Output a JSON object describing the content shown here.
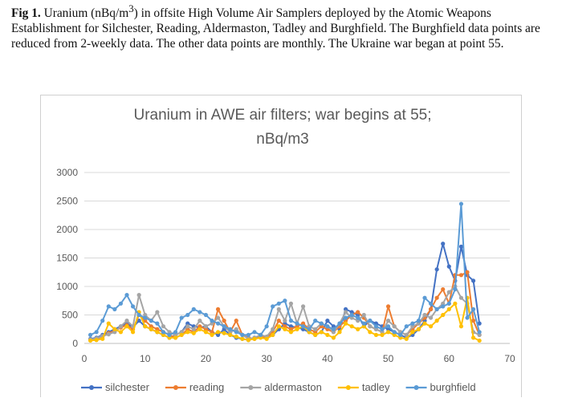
{
  "caption": {
    "fig_label": "Fig 1.",
    "text_before_sup": " Uranium (nBq/m",
    "sup": "3",
    "text_after_sup": ") in offsite High Volume Air Samplers deployed by the Atomic Weapons Establishment for Silchester, Reading, Aldermaston, Tadley and Burghfield. The Burghfield data points are reduced from 2-weekly data. The other data points are monthly. The Ukraine war began at point 55."
  },
  "chart_data": {
    "type": "line",
    "title_line1": "Uranium in AWE air filters; war begins at 55;",
    "title_line2": "nBq/m3",
    "xlabel": "",
    "ylabel": "",
    "xlim": [
      0,
      70
    ],
    "ylim": [
      0,
      3000
    ],
    "x_ticks": [
      0,
      10,
      20,
      30,
      40,
      50,
      60,
      70
    ],
    "y_ticks": [
      0,
      500,
      1000,
      1500,
      2000,
      2500,
      3000
    ],
    "grid": "horizontal",
    "legend_position": "bottom",
    "series": [
      {
        "name": "silchester",
        "color": "#4472c4",
        "x": [
          1,
          2,
          3,
          4,
          5,
          6,
          7,
          8,
          9,
          10,
          11,
          12,
          13,
          14,
          15,
          16,
          17,
          18,
          19,
          20,
          21,
          22,
          23,
          24,
          25,
          26,
          27,
          28,
          29,
          30,
          31,
          32,
          33,
          34,
          35,
          36,
          37,
          38,
          39,
          40,
          41,
          42,
          43,
          44,
          45,
          46,
          47,
          48,
          49,
          50,
          51,
          52,
          53,
          54,
          55,
          56,
          57,
          58,
          59,
          60,
          61,
          62,
          63,
          64,
          65
        ],
        "values": [
          80,
          100,
          150,
          200,
          250,
          300,
          350,
          280,
          400,
          300,
          250,
          200,
          150,
          100,
          150,
          200,
          350,
          300,
          280,
          300,
          200,
          150,
          250,
          150,
          100,
          80,
          60,
          100,
          120,
          100,
          150,
          250,
          350,
          300,
          280,
          250,
          200,
          150,
          200,
          400,
          300,
          250,
          600,
          550,
          500,
          300,
          400,
          350,
          300,
          250,
          200,
          150,
          100,
          150,
          250,
          400,
          600,
          1300,
          1750,
          1350,
          1100,
          1700,
          1200,
          1100,
          350
        ]
      },
      {
        "name": "reading",
        "color": "#ed7d31",
        "x": [
          1,
          2,
          3,
          4,
          5,
          6,
          7,
          8,
          9,
          10,
          11,
          12,
          13,
          14,
          15,
          16,
          17,
          18,
          19,
          20,
          21,
          22,
          23,
          24,
          25,
          26,
          27,
          28,
          29,
          30,
          31,
          32,
          33,
          34,
          35,
          36,
          37,
          38,
          39,
          40,
          41,
          42,
          43,
          44,
          45,
          46,
          47,
          48,
          49,
          50,
          51,
          52,
          53,
          54,
          55,
          56,
          57,
          58,
          59,
          60,
          61,
          62,
          63,
          64,
          65
        ],
        "values": [
          60,
          80,
          120,
          180,
          220,
          280,
          320,
          250,
          500,
          400,
          300,
          250,
          200,
          150,
          100,
          150,
          250,
          200,
          300,
          250,
          200,
          600,
          400,
          200,
          400,
          150,
          100,
          80,
          120,
          100,
          200,
          400,
          300,
          250,
          300,
          350,
          250,
          200,
          300,
          250,
          200,
          300,
          400,
          500,
          550,
          450,
          300,
          250,
          200,
          650,
          300,
          200,
          150,
          250,
          350,
          450,
          600,
          800,
          950,
          700,
          1200,
          1200,
          1250,
          400,
          150
        ]
      },
      {
        "name": "aldermaston",
        "color": "#a5a5a5",
        "x": [
          1,
          2,
          3,
          4,
          5,
          6,
          7,
          8,
          9,
          10,
          11,
          12,
          13,
          14,
          15,
          16,
          17,
          18,
          19,
          20,
          21,
          22,
          23,
          24,
          25,
          26,
          27,
          28,
          29,
          30,
          31,
          32,
          33,
          34,
          35,
          36,
          37,
          38,
          39,
          40,
          41,
          42,
          43,
          44,
          45,
          46,
          47,
          48,
          49,
          50,
          51,
          52,
          53,
          54,
          55,
          56,
          57,
          58,
          59,
          60,
          61,
          62,
          63,
          64,
          65
        ],
        "values": [
          70,
          90,
          130,
          160,
          200,
          300,
          400,
          300,
          850,
          500,
          400,
          550,
          300,
          200,
          150,
          200,
          300,
          250,
          400,
          300,
          350,
          450,
          300,
          200,
          250,
          150,
          80,
          100,
          150,
          120,
          250,
          600,
          400,
          700,
          350,
          650,
          300,
          250,
          350,
          300,
          200,
          350,
          550,
          450,
          400,
          500,
          300,
          250,
          200,
          400,
          300,
          200,
          150,
          300,
          350,
          500,
          450,
          600,
          700,
          900,
          1000,
          800,
          700,
          200,
          150
        ]
      },
      {
        "name": "tadley",
        "color": "#ffc000",
        "x": [
          1,
          2,
          3,
          4,
          5,
          6,
          7,
          8,
          9,
          10,
          11,
          12,
          13,
          14,
          15,
          16,
          17,
          18,
          19,
          20,
          21,
          22,
          23,
          24,
          25,
          26,
          27,
          28,
          29,
          30,
          31,
          32,
          33,
          34,
          35,
          36,
          37,
          38,
          39,
          40,
          41,
          42,
          43,
          44,
          45,
          46,
          47,
          48,
          49,
          50,
          51,
          52,
          53,
          54,
          55,
          56,
          57,
          58,
          59,
          60,
          61,
          62,
          63,
          64,
          65
        ],
        "values": [
          50,
          60,
          80,
          350,
          250,
          200,
          300,
          200,
          550,
          300,
          250,
          200,
          150,
          100,
          100,
          150,
          200,
          180,
          250,
          200,
          150,
          200,
          180,
          150,
          120,
          80,
          60,
          80,
          100,
          80,
          150,
          300,
          250,
          200,
          250,
          300,
          200,
          150,
          200,
          150,
          100,
          200,
          350,
          300,
          250,
          300,
          200,
          150,
          150,
          200,
          150,
          100,
          80,
          200,
          250,
          350,
          300,
          400,
          500,
          600,
          700,
          300,
          800,
          100,
          50
        ]
      },
      {
        "name": "burghfield",
        "color": "#5b9bd5",
        "x": [
          1,
          2,
          3,
          4,
          5,
          6,
          7,
          8,
          9,
          10,
          11,
          12,
          13,
          14,
          15,
          16,
          17,
          18,
          19,
          20,
          21,
          22,
          23,
          24,
          25,
          26,
          27,
          28,
          29,
          30,
          31,
          32,
          33,
          34,
          35,
          36,
          37,
          38,
          39,
          40,
          41,
          42,
          43,
          44,
          45,
          46,
          47,
          48,
          49,
          50,
          51,
          52,
          53,
          54,
          55,
          56,
          57,
          58,
          59,
          60,
          61,
          62,
          63,
          64,
          65
        ],
        "values": [
          150,
          200,
          400,
          650,
          600,
          700,
          850,
          650,
          500,
          450,
          400,
          350,
          200,
          150,
          200,
          450,
          500,
          600,
          550,
          500,
          400,
          350,
          300,
          250,
          200,
          150,
          150,
          200,
          150,
          300,
          650,
          700,
          750,
          400,
          350,
          300,
          250,
          400,
          350,
          300,
          250,
          350,
          450,
          500,
          450,
          350,
          400,
          300,
          250,
          300,
          200,
          150,
          300,
          350,
          400,
          800,
          700,
          600,
          650,
          700,
          950,
          2450,
          450,
          600,
          200
        ]
      }
    ]
  }
}
